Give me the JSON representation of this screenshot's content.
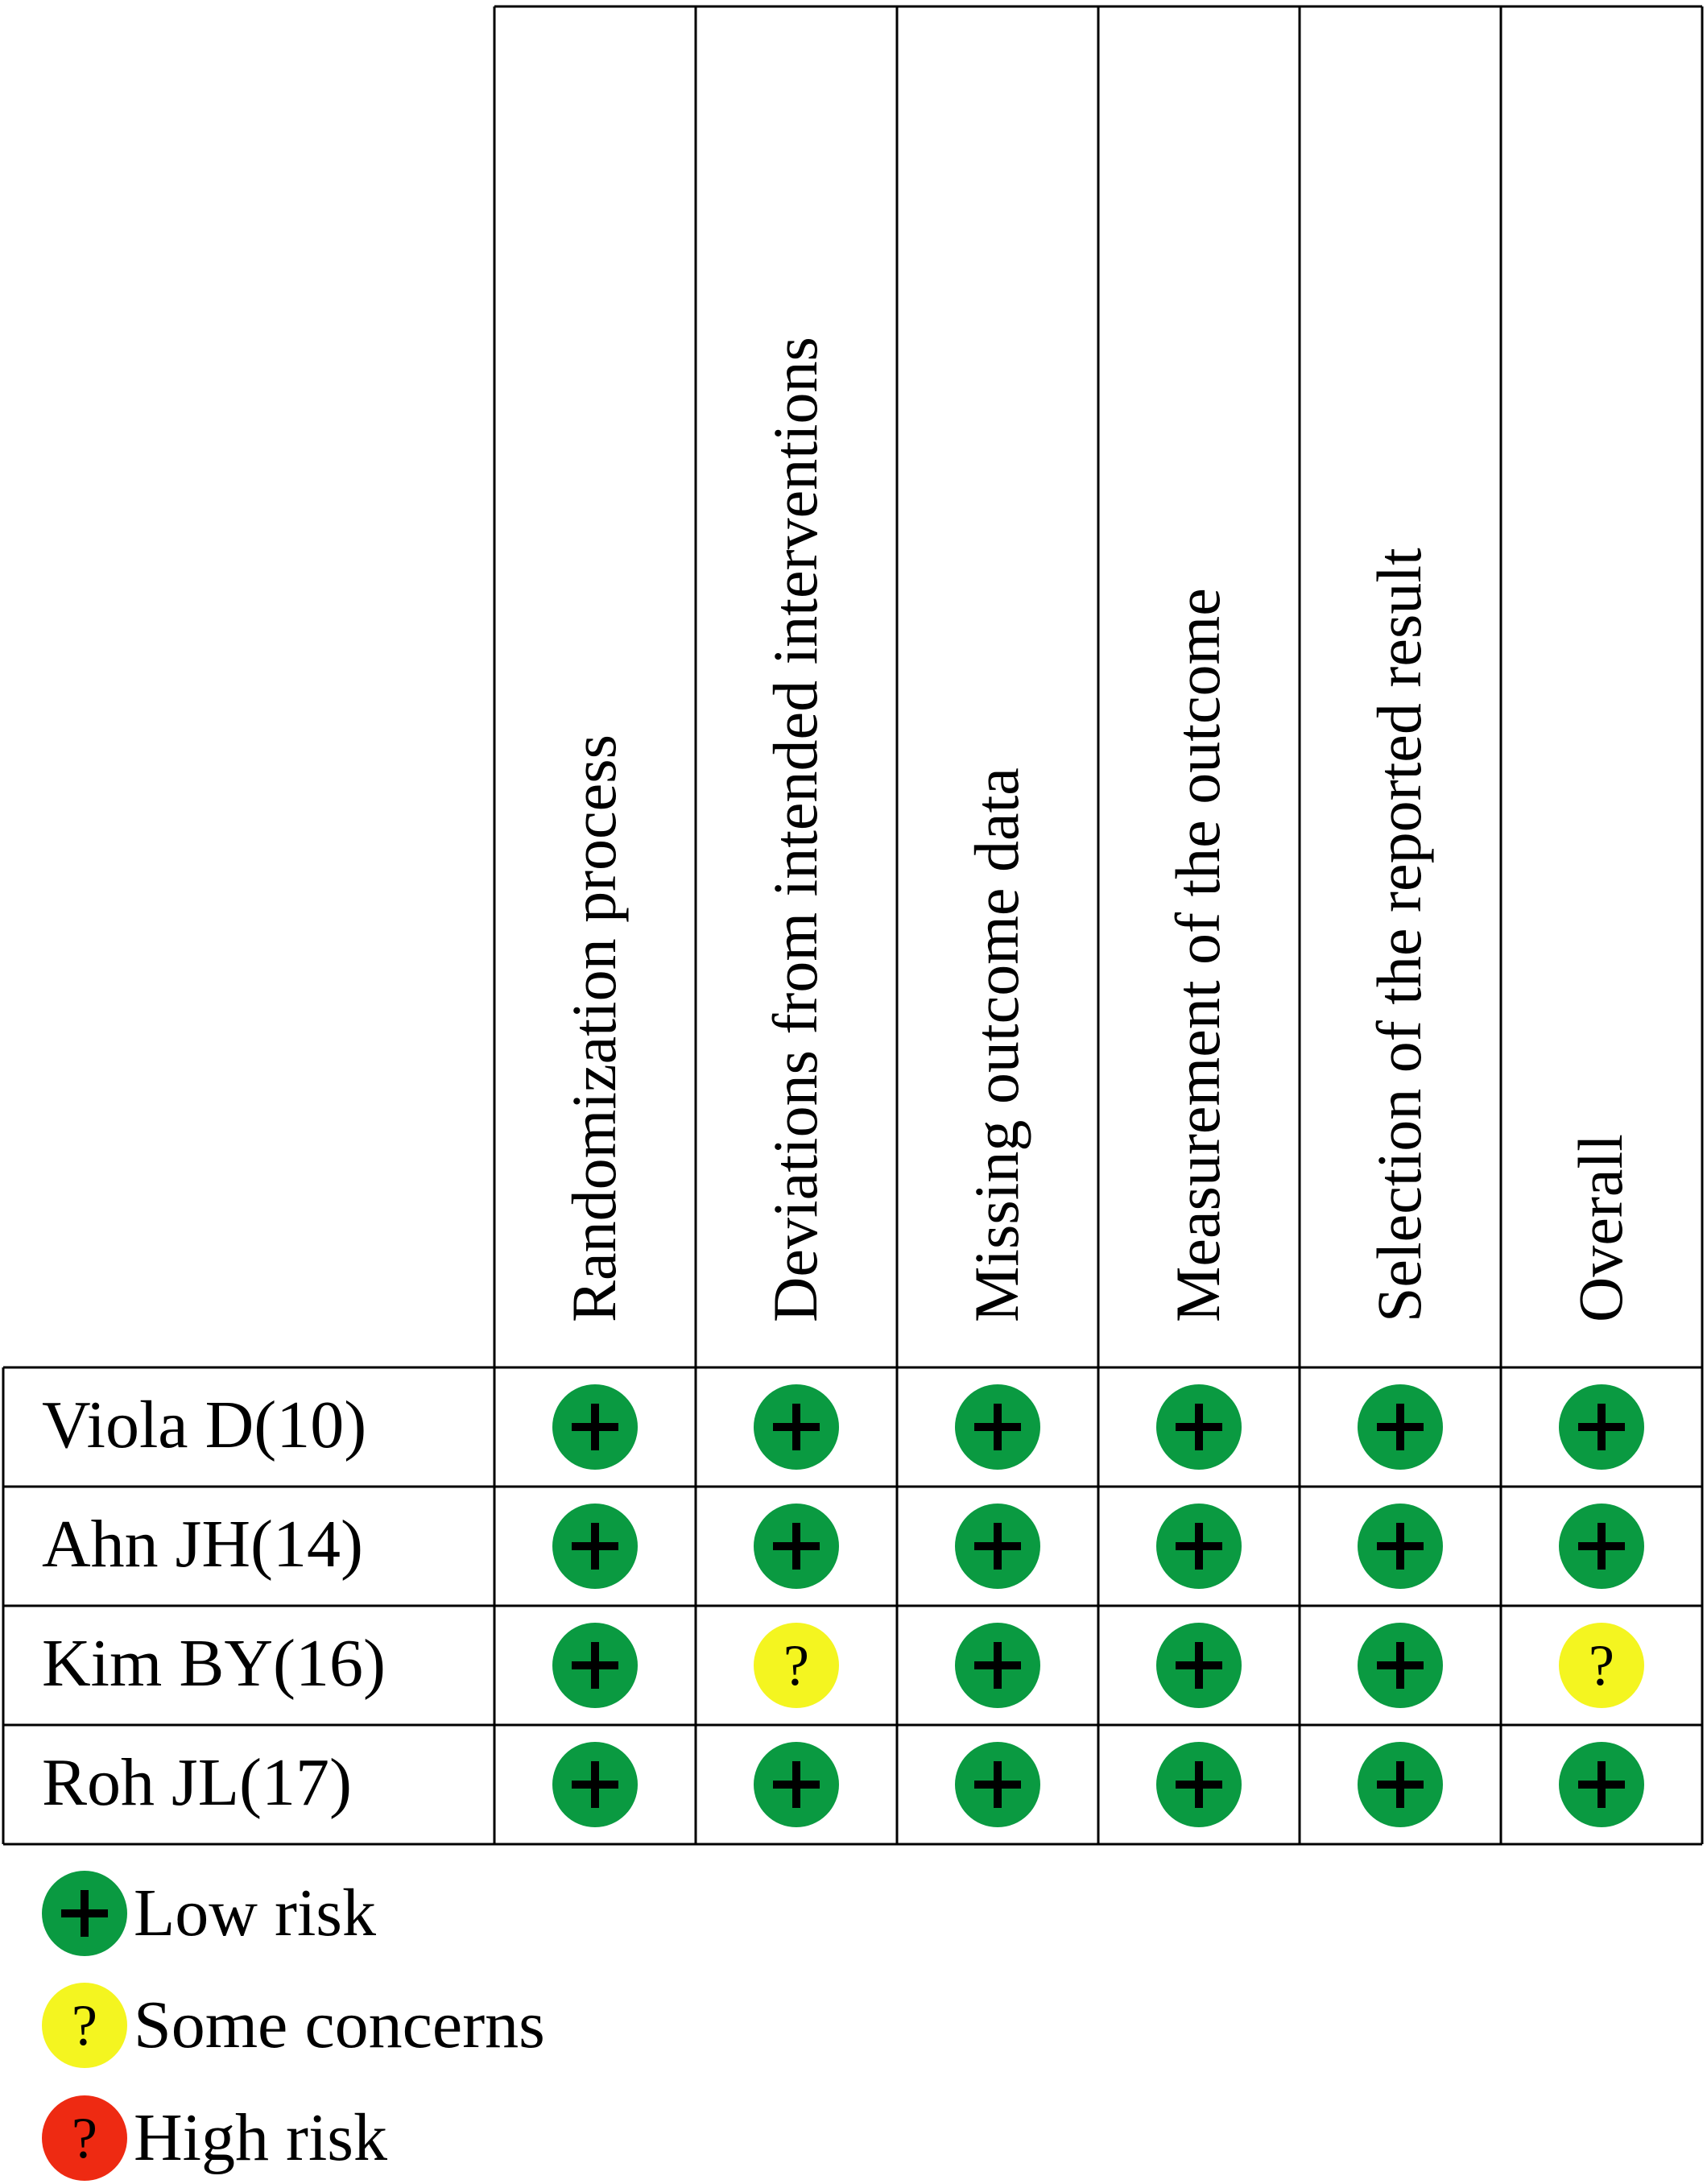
{
  "domains": [
    "Randomization process",
    "Deviations from intended interventions",
    "Missing outcome data",
    "Measurement of the outcome",
    "Selection of the reported result",
    "Overall"
  ],
  "studies": [
    {
      "name": "Viola D(10)",
      "ratings": [
        "low",
        "low",
        "low",
        "low",
        "low",
        "low"
      ]
    },
    {
      "name": "Ahn JH(14)",
      "ratings": [
        "low",
        "low",
        "low",
        "low",
        "low",
        "low"
      ]
    },
    {
      "name": "Kim BY(16)",
      "ratings": [
        "low",
        "some",
        "low",
        "low",
        "low",
        "some"
      ]
    },
    {
      "name": "Roh JL(17)",
      "ratings": [
        "low",
        "low",
        "low",
        "low",
        "low",
        "low"
      ]
    }
  ],
  "legend": [
    {
      "level": "low",
      "label": "Low risk",
      "symbol": "+"
    },
    {
      "level": "some",
      "label": "Some concerns",
      "symbol": "?"
    },
    {
      "level": "high",
      "label": "High risk",
      "symbol": "?"
    }
  ],
  "colors": {
    "low": "#0a9a41",
    "some": "#f4f520",
    "high": "#ee2a12",
    "grid": "#000000"
  }
}
